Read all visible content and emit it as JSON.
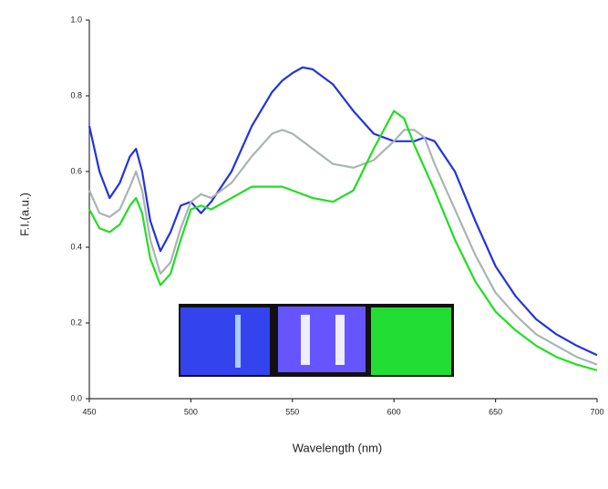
{
  "chart_data": {
    "type": "line",
    "x_label": "Wavelength (nm)",
    "y_label": "F.I.(a.u.)",
    "x": [
      450,
      455,
      460,
      465,
      470,
      473,
      476,
      480,
      485,
      490,
      495,
      500,
      505,
      510,
      520,
      530,
      540,
      545,
      550,
      555,
      560,
      570,
      580,
      590,
      600,
      605,
      610,
      615,
      620,
      630,
      640,
      650,
      660,
      670,
      680,
      690,
      700
    ],
    "series": [
      {
        "color": "#2233dd",
        "values": [
          0.72,
          0.6,
          0.53,
          0.57,
          0.64,
          0.66,
          0.6,
          0.47,
          0.39,
          0.44,
          0.51,
          0.52,
          0.49,
          0.52,
          0.6,
          0.72,
          0.81,
          0.84,
          0.86,
          0.875,
          0.87,
          0.83,
          0.76,
          0.7,
          0.68,
          0.68,
          0.68,
          0.69,
          0.68,
          0.6,
          0.47,
          0.35,
          0.27,
          0.21,
          0.17,
          0.14,
          0.115
        ]
      },
      {
        "color": "#aab4b4",
        "values": [
          0.55,
          0.49,
          0.48,
          0.5,
          0.56,
          0.6,
          0.55,
          0.42,
          0.33,
          0.36,
          0.45,
          0.52,
          0.54,
          0.53,
          0.57,
          0.64,
          0.7,
          0.71,
          0.7,
          0.68,
          0.66,
          0.62,
          0.61,
          0.63,
          0.68,
          0.71,
          0.71,
          0.69,
          0.62,
          0.5,
          0.38,
          0.28,
          0.22,
          0.17,
          0.14,
          0.11,
          0.09
        ]
      },
      {
        "color": "#22dd22",
        "values": [
          0.5,
          0.45,
          0.44,
          0.46,
          0.51,
          0.53,
          0.49,
          0.37,
          0.3,
          0.33,
          0.42,
          0.5,
          0.51,
          0.5,
          0.53,
          0.56,
          0.56,
          0.56,
          0.55,
          0.54,
          0.53,
          0.52,
          0.55,
          0.66,
          0.76,
          0.74,
          0.67,
          0.61,
          0.55,
          0.42,
          0.31,
          0.23,
          0.18,
          0.14,
          0.11,
          0.09,
          0.075
        ]
      }
    ],
    "xlim": [
      450,
      700
    ],
    "xticks": [
      450,
      500,
      550,
      600,
      650,
      700
    ],
    "ylim": [
      0,
      1.0
    ],
    "yticks": [
      {
        "value": 0,
        "label": "0.0"
      },
      0.2,
      0.4,
      0.6,
      0.8,
      {
        "value": 1.0,
        "label": "1.0"
      }
    ]
  }
}
